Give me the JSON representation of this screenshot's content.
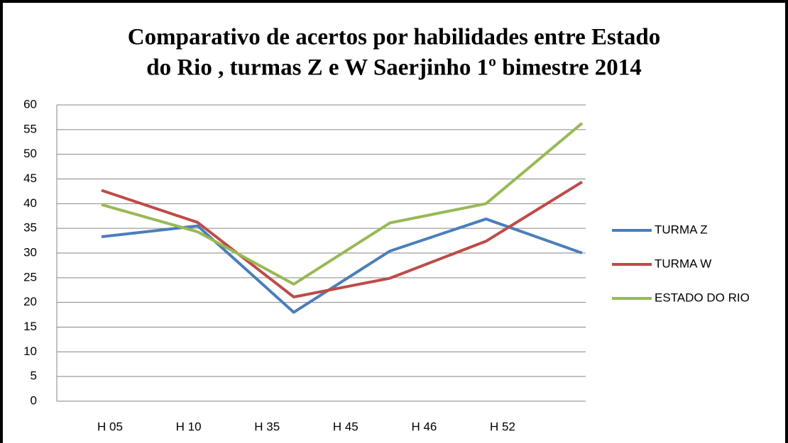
{
  "chart_data": {
    "type": "line",
    "title": [
      "Comparativo de acertos por habilidades entre Estado",
      "do Rio , turmas Z e W Saerjinho 1º bimestre  2014"
    ],
    "categories": [
      "H 05",
      "H 10",
      "H 35",
      "H 45",
      "H 46",
      "H 52"
    ],
    "series": [
      {
        "name": "TURMA Z",
        "color": "#4a7ebb",
        "values": [
          33.3,
          35.5,
          18,
          30.4,
          36.9,
          30
        ]
      },
      {
        "name": "TURMA W",
        "color": "#be4b48",
        "values": [
          42.7,
          36.2,
          21.1,
          24.9,
          32.4,
          44.4
        ]
      },
      {
        "name": "ESTADO DO RIO",
        "color": "#98b954",
        "values": [
          39.8,
          34.3,
          23.7,
          36.1,
          40,
          56.3
        ]
      }
    ],
    "ylim": [
      0,
      60
    ],
    "yticks": [
      0,
      5,
      10,
      15,
      20,
      25,
      30,
      35,
      40,
      45,
      50,
      55,
      60
    ],
    "grid": true,
    "legend": "right"
  }
}
